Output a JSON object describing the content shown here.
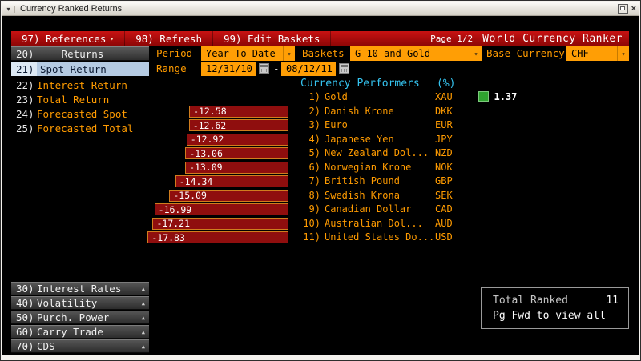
{
  "window": {
    "title": "Currency Ranked Returns"
  },
  "menubar": {
    "items": [
      {
        "label": "97) References",
        "dropdown": true
      },
      {
        "label": "98) Refresh",
        "dropdown": false
      },
      {
        "label": "99) Edit Baskets",
        "dropdown": false
      }
    ],
    "page_indicator": "Page 1/2",
    "app_title": "World Currency Ranker"
  },
  "controls": {
    "returns": {
      "num": "20)",
      "label": "Returns"
    },
    "period": {
      "label": "Period",
      "value": "Year To Date"
    },
    "baskets": {
      "label": "Baskets",
      "value": "G-10 and Gold"
    },
    "base_currency": {
      "label": "Base Currency",
      "value": "CHF"
    },
    "spot_return": {
      "num": "21)",
      "label": "Spot Return"
    },
    "range": {
      "label": "Range",
      "start": "12/31/10",
      "separator": "-",
      "end": "08/12/11"
    }
  },
  "sidebar": {
    "items": [
      {
        "num": "22)",
        "label": "Interest Return"
      },
      {
        "num": "23)",
        "label": "Total Return"
      },
      {
        "num": "24)",
        "label": "Forecasted Spot"
      },
      {
        "num": "25)",
        "label": "Forecasted Total"
      }
    ]
  },
  "bottom_menu": {
    "items": [
      {
        "num": "30)",
        "label": "Interest Rates"
      },
      {
        "num": "40)",
        "label": "Volatility"
      },
      {
        "num": "50)",
        "label": "Purch. Power"
      },
      {
        "num": "60)",
        "label": "Carry Trade"
      },
      {
        "num": "70)",
        "label": "CDS"
      }
    ]
  },
  "chart_data": {
    "type": "bar",
    "orientation": "horizontal",
    "title": "Currency Performers",
    "unit_label": "(%)",
    "layout": {
      "negative_bars": "left-of-labels",
      "positive_bars": "right-of-labels",
      "grid": false
    },
    "rows": [
      {
        "rank": "1)",
        "name": "Gold",
        "code": "XAU",
        "value": 1.37
      },
      {
        "rank": "2)",
        "name": "Danish Krone",
        "code": "DKK",
        "value": -12.58
      },
      {
        "rank": "3)",
        "name": "Euro",
        "code": "EUR",
        "value": -12.62
      },
      {
        "rank": "4)",
        "name": "Japanese Yen",
        "code": "JPY",
        "value": -12.92
      },
      {
        "rank": "5)",
        "name": "New Zealand Dol...",
        "code": "NZD",
        "value": -13.06
      },
      {
        "rank": "6)",
        "name": "Norwegian Krone",
        "code": "NOK",
        "value": -13.09
      },
      {
        "rank": "7)",
        "name": "British Pound",
        "code": "GBP",
        "value": -14.34
      },
      {
        "rank": "8)",
        "name": "Swedish Krona",
        "code": "SEK",
        "value": -15.09
      },
      {
        "rank": "9)",
        "name": "Canadian Dollar",
        "code": "CAD",
        "value": -16.99
      },
      {
        "rank": "10)",
        "name": "Australian Dol...",
        "code": "AUD",
        "value": -17.21
      },
      {
        "rank": "11)",
        "name": "United States Do...",
        "code": "USD",
        "value": -17.83
      }
    ],
    "colors": {
      "negative_bar": "#8f0e0e",
      "negative_bar_border": "#d07d1e",
      "positive_bar": "#2fa32f",
      "title": "#35c4f0",
      "text": "#ff9b00"
    }
  },
  "footer": {
    "total_ranked_label": "Total Ranked",
    "total_ranked_value": "11",
    "page_hint": "Pg Fwd to view all"
  }
}
